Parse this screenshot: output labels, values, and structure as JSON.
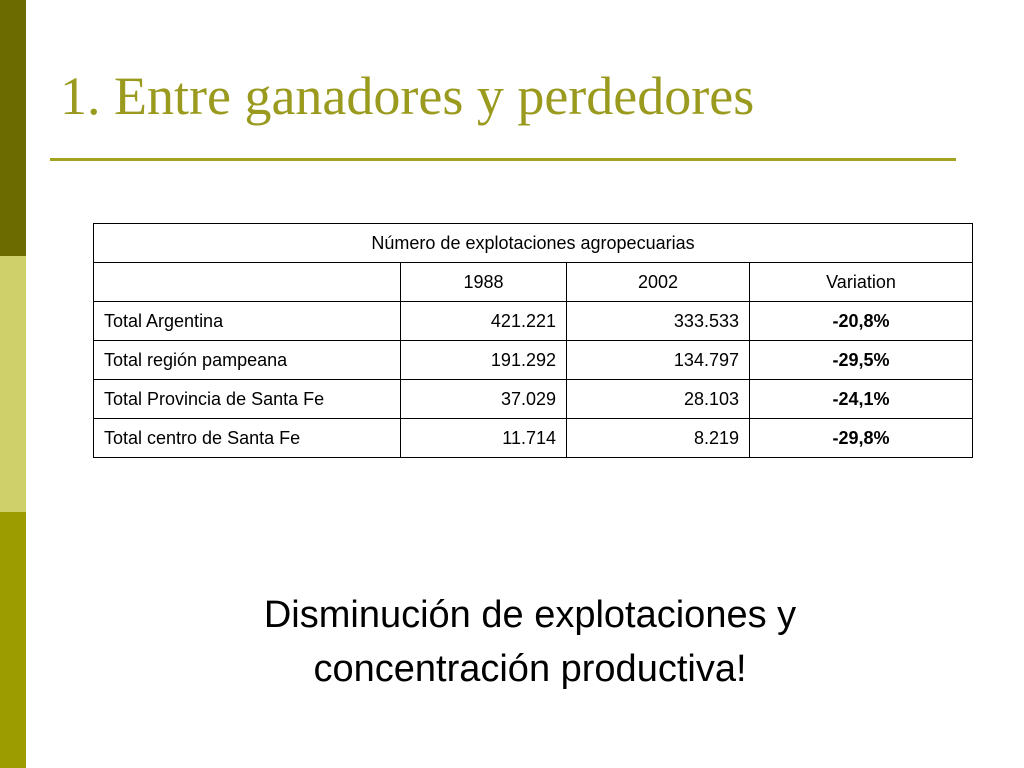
{
  "slide": {
    "title": "1. Entre ganadores y perdedores",
    "colors": {
      "title": "#9a9a1e",
      "rule": "#a3a322",
      "sidebar_top": "#6b6b00",
      "sidebar_middle": "#cfd06a",
      "sidebar_bottom": "#9c9c00"
    }
  },
  "table": {
    "caption": "Número de explotaciones agropecuarias",
    "headers": [
      "",
      "1988",
      "2002",
      "Variation"
    ],
    "rows": [
      {
        "label": "Total Argentina",
        "y1988": "421.221",
        "y2002": "333.533",
        "variation": "-20,8%"
      },
      {
        "label": "Total región pampeana",
        "y1988": "191.292",
        "y2002": "134.797",
        "variation": "-29,5%"
      },
      {
        "label": "Total Provincia de Santa Fe",
        "y1988": "37.029",
        "y2002": "28.103",
        "variation": "-24,1%"
      },
      {
        "label": "Total centro de Santa Fe",
        "y1988": "11.714",
        "y2002": "8.219",
        "variation": "-29,8%"
      }
    ]
  },
  "conclusion": {
    "line1": "Disminución de explotaciones y",
    "line2": "concentración productiva!"
  }
}
